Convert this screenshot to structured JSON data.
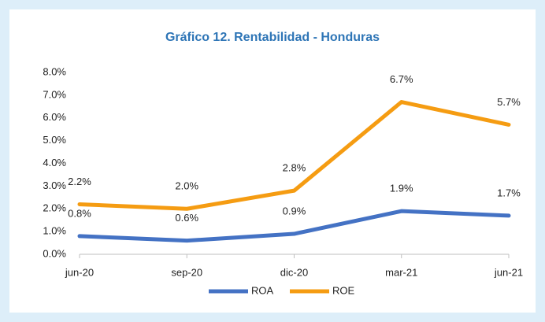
{
  "chart_data": {
    "type": "line",
    "title": "Gráfico 12. Rentabilidad - Honduras",
    "categories": [
      "jun-20",
      "sep-20",
      "dic-20",
      "mar-21",
      "jun-21"
    ],
    "series": [
      {
        "name": "ROA",
        "color": "#4472c4",
        "values": [
          0.8,
          0.6,
          0.9,
          1.9,
          1.7
        ],
        "value_labels": [
          "0.8%",
          "0.6%",
          "0.9%",
          "1.9%",
          "1.7%"
        ]
      },
      {
        "name": "ROE",
        "color": "#f59c12",
        "values": [
          2.2,
          2.0,
          2.8,
          6.7,
          5.7
        ],
        "value_labels": [
          "2.2%",
          "2.0%",
          "2.8%",
          "6.7%",
          "5.7%"
        ]
      }
    ],
    "ylim": [
      0,
      8
    ],
    "yticks": [
      {
        "value": 0,
        "label": "0.0%"
      },
      {
        "value": 1,
        "label": "1.0%"
      },
      {
        "value": 2,
        "label": "2.0%"
      },
      {
        "value": 3,
        "label": "3.0%"
      },
      {
        "value": 4,
        "label": "4.0%"
      },
      {
        "value": 5,
        "label": "5.0%"
      },
      {
        "value": 6,
        "label": "6.0%"
      },
      {
        "value": 7,
        "label": "7.0%"
      },
      {
        "value": 8,
        "label": "8.0%"
      }
    ],
    "legend": "bottom"
  }
}
